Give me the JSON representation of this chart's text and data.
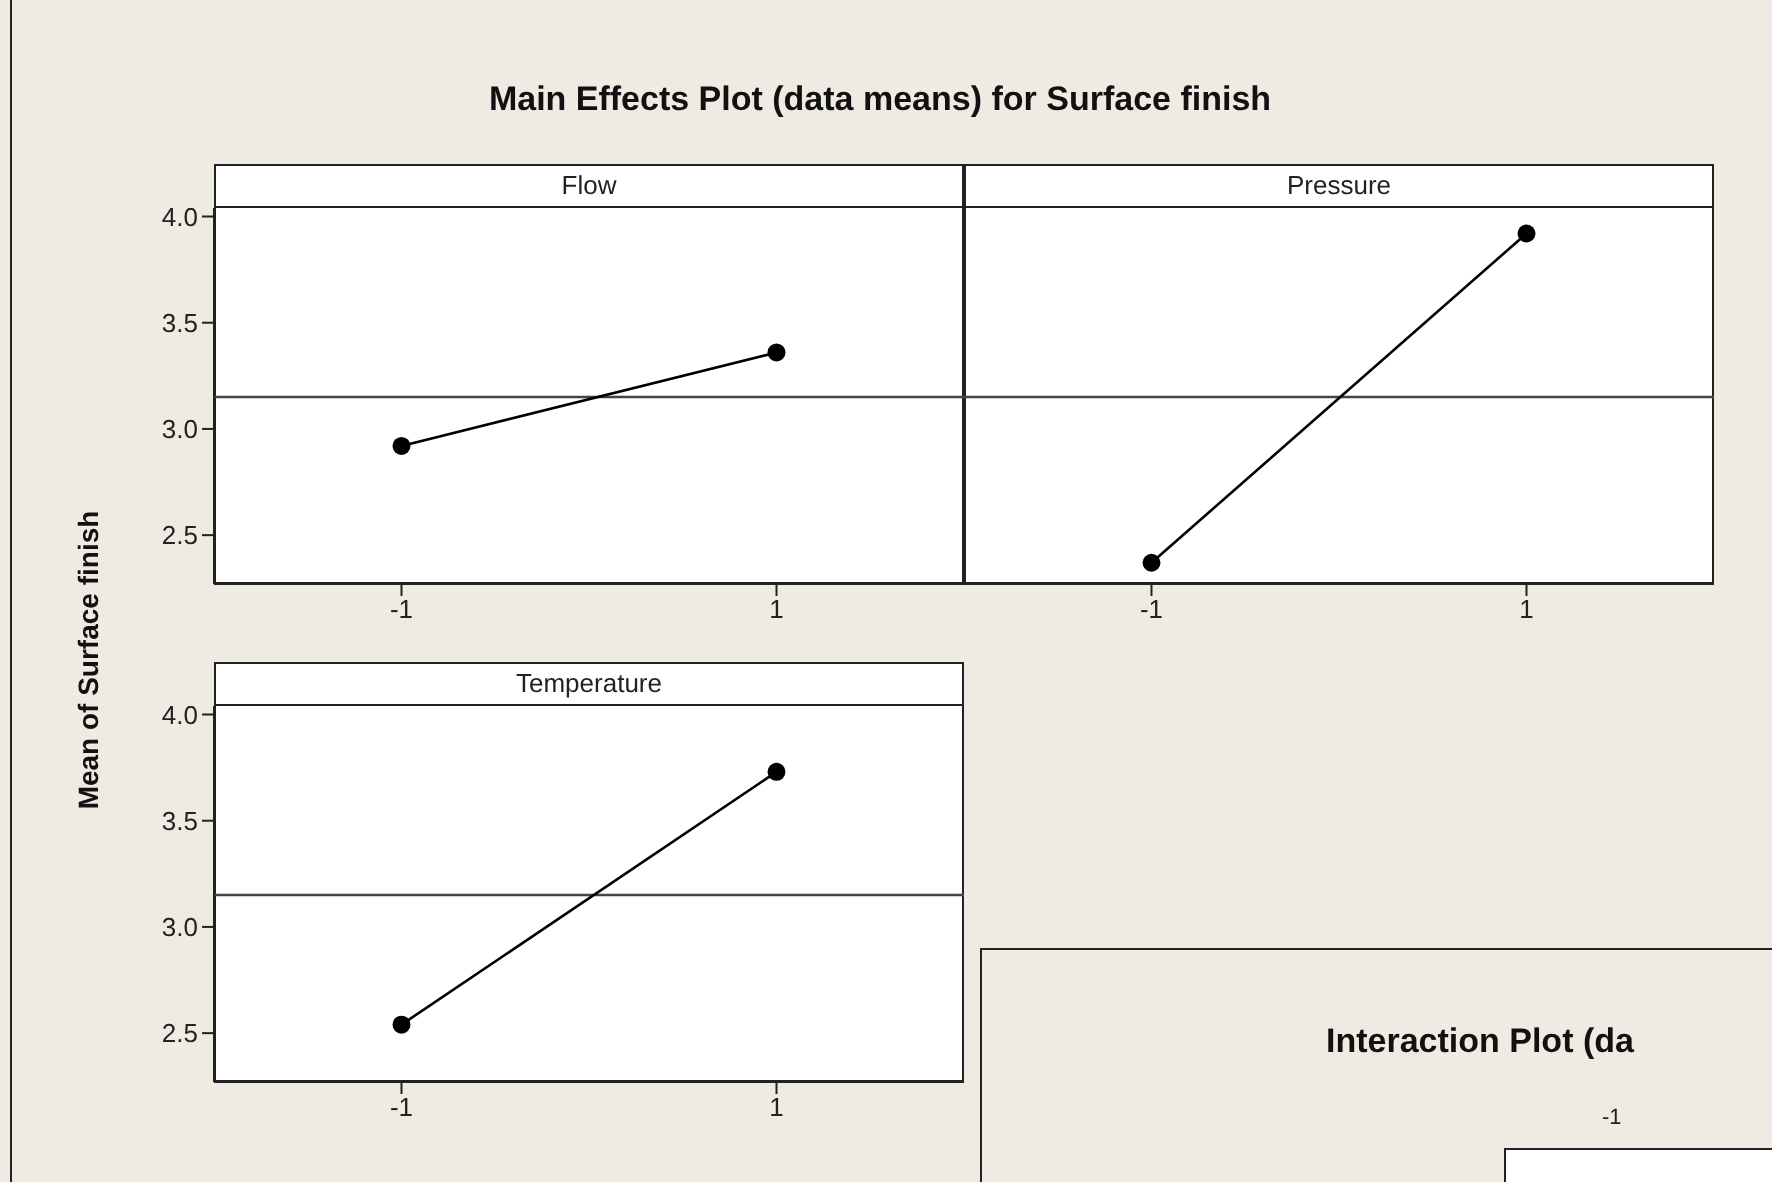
{
  "chart_data": [
    {
      "type": "line",
      "title": "Main Effects Plot (data means) for Surface finish",
      "subtitle": "Flow",
      "ylabel": "Mean of Surface finish",
      "categories": [
        "-1",
        "1"
      ],
      "values": [
        2.92,
        3.36
      ],
      "color": "#000000",
      "ylim": [
        2.27,
        4.04
      ],
      "yticks": [
        {
          "value": 2.5,
          "label": "2.5"
        },
        {
          "value": 3,
          "label": "3.0"
        },
        {
          "value": 3.5,
          "label": "3.5"
        },
        {
          "value": 4,
          "label": "4.0"
        }
      ],
      "ref_lines": [
        {
          "axis": "y",
          "value": 3.15,
          "color": "#444444"
        }
      ],
      "marker": "circle",
      "line_style": "solid"
    },
    {
      "type": "line",
      "subtitle": "Pressure",
      "categories": [
        "-1",
        "1"
      ],
      "values": [
        2.37,
        3.92
      ],
      "color": "#000000",
      "ylim": [
        2.27,
        4.04
      ],
      "tick_labels": "x",
      "ref_lines": [
        {
          "axis": "y",
          "value": 3.15,
          "color": "#444444"
        }
      ],
      "marker": "circle",
      "line_style": "solid"
    },
    {
      "type": "line",
      "subtitle": "Temperature",
      "categories": [
        "-1",
        "1"
      ],
      "values": [
        2.54,
        3.73
      ],
      "color": "#000000",
      "ylim": [
        2.27,
        4.04
      ],
      "yticks": [
        {
          "value": 2.5,
          "label": "2.5"
        },
        {
          "value": 3,
          "label": "3.0"
        },
        {
          "value": 3.5,
          "label": "3.5"
        },
        {
          "value": 4,
          "label": "4.0"
        }
      ],
      "ref_lines": [
        {
          "axis": "y",
          "value": 3.15,
          "color": "#444444"
        }
      ],
      "marker": "circle",
      "line_style": "solid"
    },
    {
      "type": "other",
      "title": "Interaction Plot (da",
      "annotations": [
        "-1"
      ]
    }
  ]
}
